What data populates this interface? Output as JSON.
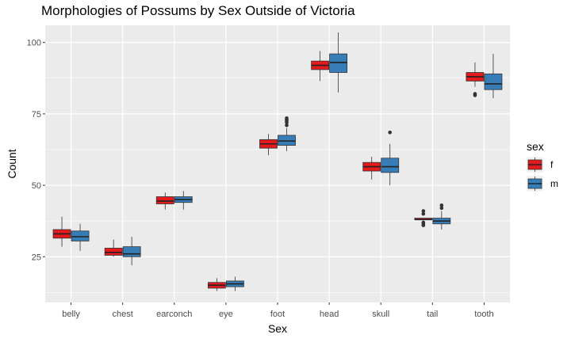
{
  "chart_data": {
    "type": "boxplot",
    "title": "Morphologies of Possums by Sex Outside of Victoria",
    "xlabel": "Sex",
    "ylabel": "Count",
    "ylim": [
      9,
      106
    ],
    "yticks": [
      25,
      50,
      75,
      100
    ],
    "grid": true,
    "legend": {
      "title": "sex",
      "position": "right"
    },
    "colors": {
      "f": "#e41a1c",
      "m": "#377eb8",
      "panel": "#ebebeb",
      "grid": "#ffffff"
    },
    "categories": [
      "belly",
      "chest",
      "earconch",
      "eye",
      "foot",
      "head",
      "skull",
      "tail",
      "tooth"
    ],
    "series": [
      {
        "name": "f",
        "boxes": [
          {
            "min": 28.5,
            "q1": 31.5,
            "median": 33.0,
            "q3": 34.5,
            "max": 39.0,
            "outliers": []
          },
          {
            "min": 25.0,
            "q1": 25.5,
            "median": 26.5,
            "q3": 28.0,
            "max": 31.0,
            "outliers": []
          },
          {
            "min": 41.5,
            "q1": 43.5,
            "median": 44.5,
            "q3": 46.0,
            "max": 47.5,
            "outliers": []
          },
          {
            "min": 13.0,
            "q1": 14.0,
            "median": 15.0,
            "q3": 16.0,
            "max": 17.5,
            "outliers": []
          },
          {
            "min": 60.5,
            "q1": 63.0,
            "median": 64.5,
            "q3": 66.0,
            "max": 68.0,
            "outliers": []
          },
          {
            "min": 86.5,
            "q1": 90.5,
            "median": 92.0,
            "q3": 93.5,
            "max": 97.0,
            "outliers": []
          },
          {
            "min": 52.0,
            "q1": 55.0,
            "median": 56.5,
            "q3": 58.0,
            "max": 60.0,
            "outliers": []
          },
          {
            "min": 38.0,
            "q1": 38.0,
            "median": 38.0,
            "q3": 38.5,
            "max": 38.5,
            "outliers": [
              36.0,
              36.5,
              37.0,
              40.0,
              41.0
            ]
          },
          {
            "min": 84.5,
            "q1": 86.5,
            "median": 88.0,
            "q3": 89.5,
            "max": 93.0,
            "outliers": [
              81.5,
              82.0
            ]
          }
        ]
      },
      {
        "name": "m",
        "boxes": [
          {
            "min": 27.0,
            "q1": 30.5,
            "median": 32.0,
            "q3": 34.0,
            "max": 36.5,
            "outliers": []
          },
          {
            "min": 22.0,
            "q1": 25.0,
            "median": 26.0,
            "q3": 28.5,
            "max": 32.0,
            "outliers": []
          },
          {
            "min": 41.5,
            "q1": 44.0,
            "median": 45.0,
            "q3": 46.0,
            "max": 48.0,
            "outliers": []
          },
          {
            "min": 13.0,
            "q1": 14.5,
            "median": 15.5,
            "q3": 16.5,
            "max": 18.0,
            "outliers": []
          },
          {
            "min": 62.0,
            "q1": 64.0,
            "median": 65.5,
            "q3": 67.5,
            "max": 70.0,
            "outliers": [
              71.0,
              72.0,
              72.5,
              73.0,
              73.5
            ]
          },
          {
            "min": 82.5,
            "q1": 89.5,
            "median": 93.0,
            "q3": 96.0,
            "max": 103.5,
            "outliers": []
          },
          {
            "min": 50.0,
            "q1": 54.5,
            "median": 56.5,
            "q3": 59.5,
            "max": 64.5,
            "outliers": [
              68.5
            ]
          },
          {
            "min": 34.5,
            "q1": 36.5,
            "median": 37.5,
            "q3": 38.5,
            "max": 41.0,
            "outliers": [
              42.0,
              43.0
            ]
          },
          {
            "min": 80.5,
            "q1": 83.5,
            "median": 85.5,
            "q3": 89.0,
            "max": 96.0,
            "outliers": []
          }
        ]
      }
    ]
  }
}
